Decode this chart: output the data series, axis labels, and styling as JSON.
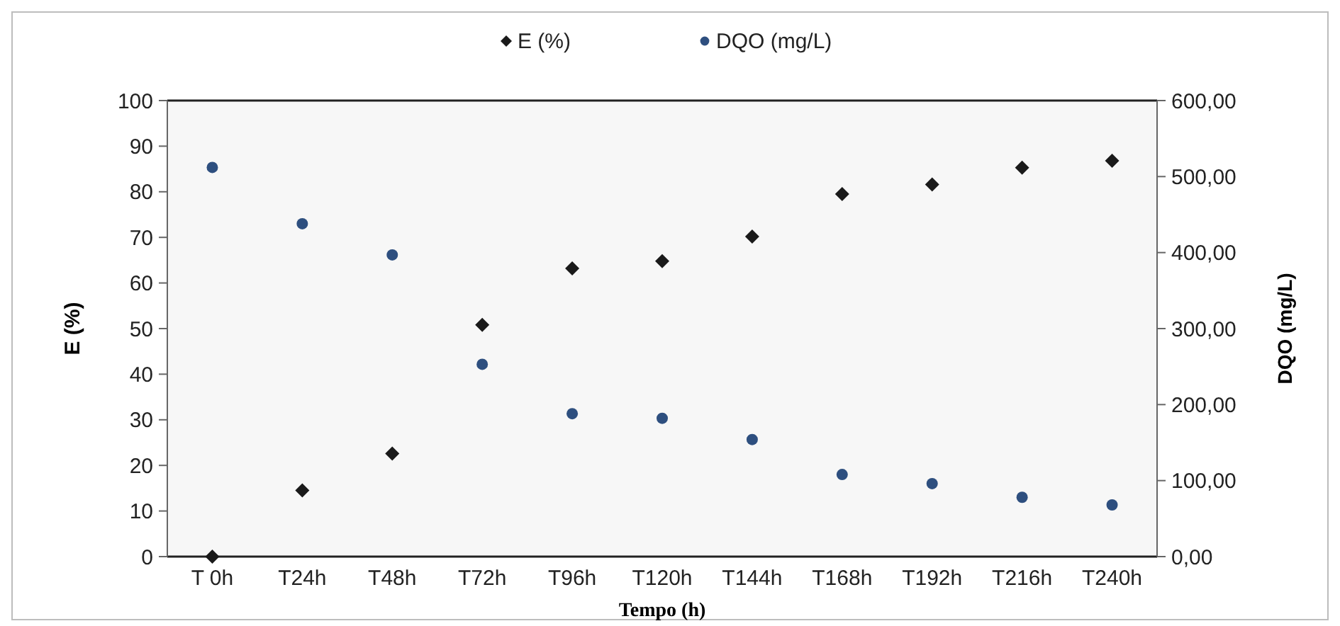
{
  "chart_data": {
    "type": "scatter",
    "xlabel": "Tempo (h)",
    "ylabel": "E (%)",
    "y2label": "DQO (mg/L)",
    "categories": [
      "T 0h",
      "T24h",
      "T48h",
      "T72h",
      "T96h",
      "T120h",
      "T144h",
      "T168h",
      "T192h",
      "T216h",
      "T240h"
    ],
    "series": [
      {
        "name": "E (%)",
        "color": "#1a1a1a",
        "marker": "diamond",
        "values": [
          0,
          14.5,
          22.6,
          50.8,
          63.2,
          64.8,
          70.2,
          79.5,
          81.6,
          85.3,
          86.8
        ]
      },
      {
        "name": "DQO (mg/L)",
        "color": "#2e4f7f",
        "marker": "circle",
        "axis": "y2",
        "values": [
          512,
          438,
          397,
          253,
          188,
          182,
          154,
          108,
          96,
          78,
          68
        ]
      }
    ],
    "ylim": [
      0,
      100
    ],
    "yticks": [
      0,
      10,
      20,
      30,
      40,
      50,
      60,
      70,
      80,
      90,
      100
    ],
    "y2lim": [
      0,
      600
    ],
    "y2ticks": [
      {
        "value": 0,
        "label": "0,00"
      },
      {
        "value": 100,
        "label": "100,00"
      },
      {
        "value": 200,
        "label": "200,00"
      },
      {
        "value": 300,
        "label": "300,00"
      },
      {
        "value": 400,
        "label": "400,00"
      },
      {
        "value": 500,
        "label": "500,00"
      },
      {
        "value": 600,
        "label": "600,00"
      }
    ],
    "grid": false,
    "legend": "top"
  }
}
